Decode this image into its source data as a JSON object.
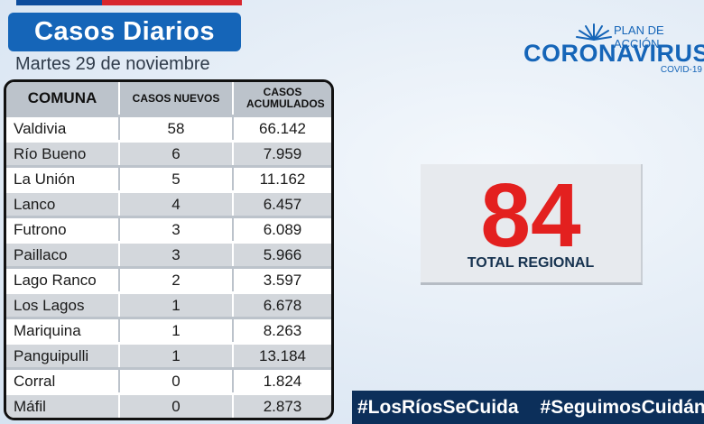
{
  "header": {
    "title": "Casos Diarios",
    "date": "Martes 29 de noviembre"
  },
  "logo": {
    "plan": "PLAN DE ACCIÓN",
    "name": "CORONAVIRUS",
    "sub": "COVID-19"
  },
  "table": {
    "headers": [
      "COMUNA",
      "CASOS NUEVOS",
      "CASOS ACUMULADOS"
    ],
    "rows": [
      {
        "comuna": "Valdivia",
        "nuevos": "58",
        "acumulados": "66.142"
      },
      {
        "comuna": "Río Bueno",
        "nuevos": "6",
        "acumulados": "7.959"
      },
      {
        "comuna": "La Unión",
        "nuevos": "5",
        "acumulados": "11.162"
      },
      {
        "comuna": "Lanco",
        "nuevos": "4",
        "acumulados": "6.457"
      },
      {
        "comuna": "Futrono",
        "nuevos": "3",
        "acumulados": "6.089"
      },
      {
        "comuna": "Paillaco",
        "nuevos": "3",
        "acumulados": "5.966"
      },
      {
        "comuna": "Lago Ranco",
        "nuevos": "2",
        "acumulados": "3.597"
      },
      {
        "comuna": "Los Lagos",
        "nuevos": "1",
        "acumulados": "6.678"
      },
      {
        "comuna": "Mariquina",
        "nuevos": "1",
        "acumulados": "8.263"
      },
      {
        "comuna": "Panguipulli",
        "nuevos": "1",
        "acumulados": "13.184"
      },
      {
        "comuna": "Corral",
        "nuevos": "0",
        "acumulados": "1.824"
      },
      {
        "comuna": "Máfil",
        "nuevos": "0",
        "acumulados": "2.873"
      }
    ]
  },
  "total": {
    "value": "84",
    "label": "TOTAL REGIONAL"
  },
  "hashtags": [
    "#LosRíosSeCuida",
    "#SeguimosCuidándonos"
  ],
  "colors": {
    "brand_blue": "#1565b8",
    "total_red": "#e3201f",
    "hashtag_bg": "#0c2f5a"
  }
}
